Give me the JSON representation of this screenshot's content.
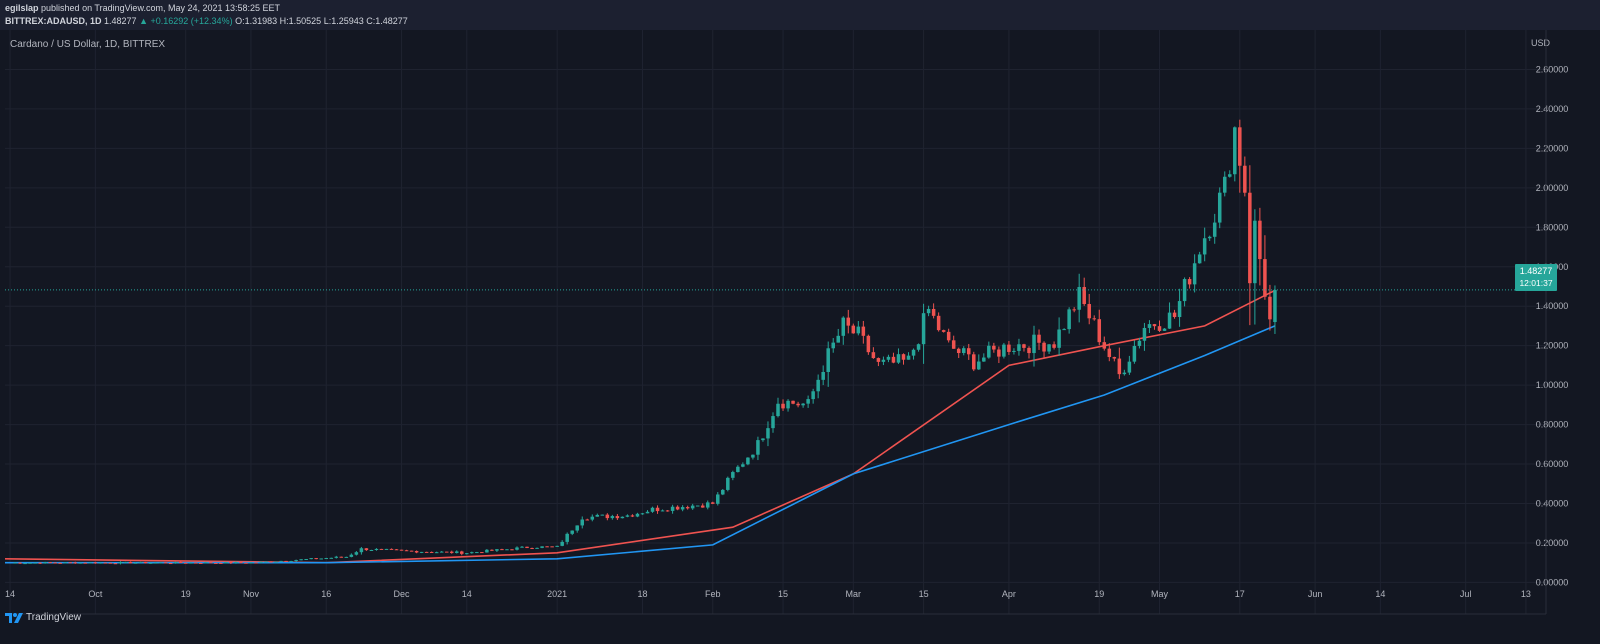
{
  "header": {
    "author": "egilslap",
    "published_text": "published on TradingView.com, May 24, 2021 13:58:25 EET",
    "symbol": "BITTREX:ADAUSD, 1D",
    "price": "1.48277",
    "change_text": "▲ +0.16292 (+12.34%)",
    "open": "O:1.31983",
    "high": "H:1.50525",
    "low": "L:1.25943",
    "close": "C:1.48277"
  },
  "footer": {
    "brand": "TradingView"
  },
  "chart_data": {
    "type": "candlestick",
    "title": "Cardano / US Dollar, 1D, BITTREX",
    "currency": "USD",
    "y_ticks": [
      "2.60000",
      "2.40000",
      "2.20000",
      "2.00000",
      "1.80000",
      "1.60000",
      "1.40000",
      "1.20000",
      "1.00000",
      "0.80000",
      "0.60000",
      "0.40000",
      "0.20000",
      "0.00000"
    ],
    "ylim": [
      -0.16,
      2.8
    ],
    "x_tick_labels": [
      {
        "label": "14",
        "date": "2020-09-14"
      },
      {
        "label": "Oct",
        "date": "2020-10-01"
      },
      {
        "label": "19",
        "date": "2020-10-19"
      },
      {
        "label": "Nov",
        "date": "2020-11-01"
      },
      {
        "label": "16",
        "date": "2020-11-16"
      },
      {
        "label": "Dec",
        "date": "2020-12-01"
      },
      {
        "label": "14",
        "date": "2020-12-14"
      },
      {
        "label": "2021",
        "date": "2021-01-01"
      },
      {
        "label": "18",
        "date": "2021-01-18"
      },
      {
        "label": "Feb",
        "date": "2021-02-01"
      },
      {
        "label": "15",
        "date": "2021-02-15"
      },
      {
        "label": "Mar",
        "date": "2021-03-01"
      },
      {
        "label": "15",
        "date": "2021-03-15"
      },
      {
        "label": "Apr",
        "date": "2021-04-01"
      },
      {
        "label": "19",
        "date": "2021-04-19"
      },
      {
        "label": "May",
        "date": "2021-05-01"
      },
      {
        "label": "17",
        "date": "2021-05-17"
      },
      {
        "label": "Jun",
        "date": "2021-06-01"
      },
      {
        "label": "14",
        "date": "2021-06-14"
      },
      {
        "label": "Jul",
        "date": "2021-07-01"
      },
      {
        "label": "13",
        "date": "2021-07-13"
      }
    ],
    "date_range": [
      "2020-09-13",
      "2021-07-17"
    ],
    "last_price": {
      "value": 1.48277,
      "label": "1.48277",
      "countdown": "12:01:37"
    },
    "key_closes": [
      {
        "date": "2020-09-14",
        "close": 0.1
      },
      {
        "date": "2020-10-01",
        "close": 0.1
      },
      {
        "date": "2020-11-01",
        "close": 0.1
      },
      {
        "date": "2020-11-20",
        "close": 0.13
      },
      {
        "date": "2020-11-23",
        "close": 0.17
      },
      {
        "date": "2020-12-01",
        "close": 0.16
      },
      {
        "date": "2020-12-14",
        "close": 0.15
      },
      {
        "date": "2020-12-27",
        "close": 0.18
      },
      {
        "date": "2021-01-01",
        "close": 0.18
      },
      {
        "date": "2021-01-06",
        "close": 0.33
      },
      {
        "date": "2021-01-15",
        "close": 0.34
      },
      {
        "date": "2021-01-20",
        "close": 0.37
      },
      {
        "date": "2021-02-01",
        "close": 0.4
      },
      {
        "date": "2021-02-05",
        "close": 0.55
      },
      {
        "date": "2021-02-10",
        "close": 0.7
      },
      {
        "date": "2021-02-14",
        "close": 0.92
      },
      {
        "date": "2021-02-20",
        "close": 0.9
      },
      {
        "date": "2021-02-23",
        "close": 1.1
      },
      {
        "date": "2021-02-27",
        "close": 1.3
      },
      {
        "date": "2021-03-02",
        "close": 1.25
      },
      {
        "date": "2021-03-06",
        "close": 1.1
      },
      {
        "date": "2021-03-12",
        "close": 1.12
      },
      {
        "date": "2021-03-16",
        "close": 1.38
      },
      {
        "date": "2021-03-20",
        "close": 1.2
      },
      {
        "date": "2021-03-25",
        "close": 1.12
      },
      {
        "date": "2021-04-01",
        "close": 1.2
      },
      {
        "date": "2021-04-10",
        "close": 1.22
      },
      {
        "date": "2021-04-15",
        "close": 1.45
      },
      {
        "date": "2021-04-18",
        "close": 1.3
      },
      {
        "date": "2021-04-23",
        "close": 1.05
      },
      {
        "date": "2021-04-28",
        "close": 1.3
      },
      {
        "date": "2021-05-04",
        "close": 1.35
      },
      {
        "date": "2021-05-09",
        "close": 1.7
      },
      {
        "date": "2021-05-14",
        "close": 2.0
      },
      {
        "date": "2021-05-16",
        "close": 2.3
      },
      {
        "date": "2021-05-18",
        "close": 2.0
      },
      {
        "date": "2021-05-19",
        "close": 1.55
      },
      {
        "date": "2021-05-20",
        "close": 1.8
      },
      {
        "date": "2021-05-23",
        "close": 1.32
      },
      {
        "date": "2021-05-24",
        "close": 1.48277
      }
    ],
    "series": [
      {
        "type": "moving_average",
        "color": "#ef5350",
        "points": [
          {
            "date": "2020-09-13",
            "value": 0.12
          },
          {
            "date": "2020-11-16",
            "value": 0.1
          },
          {
            "date": "2021-01-01",
            "value": 0.15
          },
          {
            "date": "2021-02-05",
            "value": 0.28
          },
          {
            "date": "2021-03-01",
            "value": 0.55
          },
          {
            "date": "2021-04-01",
            "value": 1.1
          },
          {
            "date": "2021-04-20",
            "value": 1.2
          },
          {
            "date": "2021-05-10",
            "value": 1.3
          },
          {
            "date": "2021-05-24",
            "value": 1.48
          }
        ]
      },
      {
        "type": "moving_average",
        "color": "#2196f3",
        "points": [
          {
            "date": "2020-09-13",
            "value": 0.1
          },
          {
            "date": "2020-11-16",
            "value": 0.1
          },
          {
            "date": "2021-01-01",
            "value": 0.12
          },
          {
            "date": "2021-02-01",
            "value": 0.19
          },
          {
            "date": "2021-03-01",
            "value": 0.55
          },
          {
            "date": "2021-04-01",
            "value": 0.8
          },
          {
            "date": "2021-04-20",
            "value": 0.95
          },
          {
            "date": "2021-05-10",
            "value": 1.15
          },
          {
            "date": "2021-05-24",
            "value": 1.3
          }
        ]
      }
    ],
    "colors": {
      "up": "#26a69a",
      "down": "#ef5350",
      "background": "#131722",
      "grid": "#1f2330"
    },
    "grid": true
  }
}
